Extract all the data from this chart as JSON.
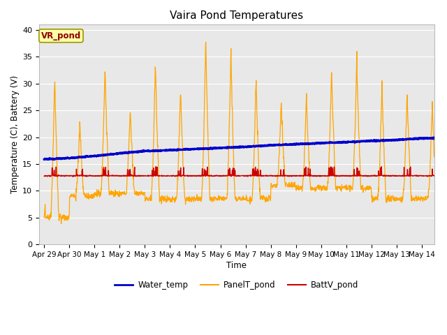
{
  "title": "Vaira Pond Temperatures",
  "xlabel": "Time",
  "ylabel": "Temperature (C), Battery (V)",
  "annotation": "VR_pond",
  "ylim": [
    0,
    41
  ],
  "yticks": [
    0,
    5,
    10,
    15,
    20,
    25,
    30,
    35,
    40
  ],
  "xtick_labels": [
    "Apr 29",
    "Apr 30",
    "May 1",
    "May 2",
    "May 3",
    "May 4",
    "May 5",
    "May 6",
    "May 7",
    "May 8",
    "May 9",
    "May 10",
    "May 11",
    "May 12",
    "May 13",
    "May 14"
  ],
  "xtick_positions": [
    0,
    1,
    2,
    3,
    4,
    5,
    6,
    7,
    8,
    9,
    10,
    11,
    12,
    13,
    14,
    15
  ],
  "water_color": "#0000cc",
  "panel_color": "#FFA500",
  "batt_color": "#cc0000",
  "bg_color": "#e8e8e8",
  "legend_entries": [
    "Water_temp",
    "PanelT_pond",
    "BattV_pond"
  ],
  "water_temp_x": [
    0,
    1,
    2,
    3,
    4,
    5,
    6,
    7,
    8,
    9,
    10,
    11,
    12,
    13,
    14,
    15
  ],
  "water_temp_y": [
    15.9,
    16.1,
    16.5,
    17.0,
    17.4,
    17.6,
    17.8,
    18.0,
    18.2,
    18.5,
    18.7,
    18.9,
    19.1,
    19.3,
    19.5,
    19.8
  ],
  "panel_peaks": [
    8.0,
    31.5,
    22.5,
    33.5,
    25.5,
    34.5,
    29.5,
    39.0,
    36.5,
    31.0,
    27.0,
    28.0,
    33.0,
    35.0,
    30.0,
    28.5,
    26.5
  ],
  "panel_valleys": [
    5.0,
    9.0,
    9.5,
    9.5,
    8.5,
    8.5,
    8.5,
    8.5,
    8.5,
    11.0,
    10.5,
    10.5,
    10.5,
    8.5,
    8.5,
    8.5
  ],
  "batt_base": 12.8,
  "batt_spike_max": 14.5,
  "figsize": [
    6.4,
    4.8
  ],
  "dpi": 100
}
